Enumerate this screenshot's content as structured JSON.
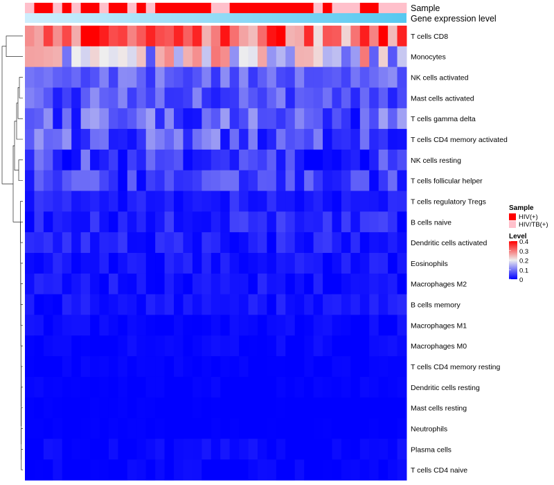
{
  "chart_data": {
    "type": "heatmap",
    "title": "",
    "annotations": {
      "sample_label": "Sample",
      "gene_label": "Gene expression level",
      "sample_groups": [
        1,
        0,
        0,
        1,
        0,
        1,
        0,
        0,
        1,
        0,
        0,
        1,
        0,
        1,
        0,
        0,
        0,
        0,
        0,
        0,
        1,
        1,
        0,
        0,
        0,
        0,
        0,
        0,
        0,
        0,
        0,
        1,
        0,
        1,
        1,
        1,
        0,
        0,
        1,
        1,
        1
      ],
      "colors": {
        "HIV(+)": "#ff0000",
        "HIV/TB(+)": "#ffc0cb",
        "gene_bar": "#56c8f0"
      }
    },
    "legend": {
      "sample_title": "Sample",
      "sample_entries": [
        "HIV(+)",
        "HIV/TB(+)"
      ],
      "level_title": "Level",
      "level_ticks": [
        "0.4",
        "0.3",
        "0.2",
        "0.1",
        "0"
      ],
      "range": [
        0,
        0.4
      ]
    },
    "rows": [
      {
        "name": "T cells CD8",
        "base": 0.32,
        "amp": 0.11,
        "seed": 1
      },
      {
        "name": "Monocytes",
        "base": 0.19,
        "amp": 0.12,
        "seed": 2
      },
      {
        "name": "NK cells activated",
        "base": 0.08,
        "amp": 0.04,
        "seed": 3
      },
      {
        "name": "Mast cells activated",
        "base": 0.07,
        "amp": 0.05,
        "seed": 4
      },
      {
        "name": "T cells gamma delta",
        "base": 0.07,
        "amp": 0.07,
        "seed": 5
      },
      {
        "name": "T cells CD4 memory activated",
        "base": 0.07,
        "amp": 0.06,
        "seed": 6
      },
      {
        "name": "NK cells resting",
        "base": 0.05,
        "amp": 0.06,
        "seed": 7
      },
      {
        "name": "T cells follicular helper",
        "base": 0.05,
        "amp": 0.05,
        "seed": 8
      },
      {
        "name": "T cells regulatory  Tregs",
        "base": 0.025,
        "amp": 0.025,
        "seed": 9
      },
      {
        "name": "B cells naive",
        "base": 0.03,
        "amp": 0.03,
        "seed": 10
      },
      {
        "name": "Dendritic cells activated",
        "base": 0.025,
        "amp": 0.025,
        "seed": 11
      },
      {
        "name": "Eosinophils",
        "base": 0.015,
        "amp": 0.02,
        "seed": 12
      },
      {
        "name": "Macrophages M2",
        "base": 0.015,
        "amp": 0.02,
        "seed": 13
      },
      {
        "name": "B cells memory",
        "base": 0.015,
        "amp": 0.02,
        "seed": 14
      },
      {
        "name": "Macrophages M1",
        "base": 0.005,
        "amp": 0.015,
        "seed": 15
      },
      {
        "name": "Macrophages M0",
        "base": 0.004,
        "amp": 0.012,
        "seed": 16
      },
      {
        "name": "T cells CD4 memory resting",
        "base": 0.002,
        "amp": 0.006,
        "seed": 17
      },
      {
        "name": "Dendritic cells resting",
        "base": 0.002,
        "amp": 0.006,
        "seed": 18
      },
      {
        "name": "Mast cells resting",
        "base": 0.0,
        "amp": 0.003,
        "seed": 19
      },
      {
        "name": "Neutrophils",
        "base": 0.0,
        "amp": 0.003,
        "seed": 20
      },
      {
        "name": "Plasma cells",
        "base": 0.005,
        "amp": 0.015,
        "seed": 21
      },
      {
        "name": "T cells CD4 naive",
        "base": 0.003,
        "amp": 0.01,
        "seed": 22
      }
    ],
    "n_columns": 41
  }
}
